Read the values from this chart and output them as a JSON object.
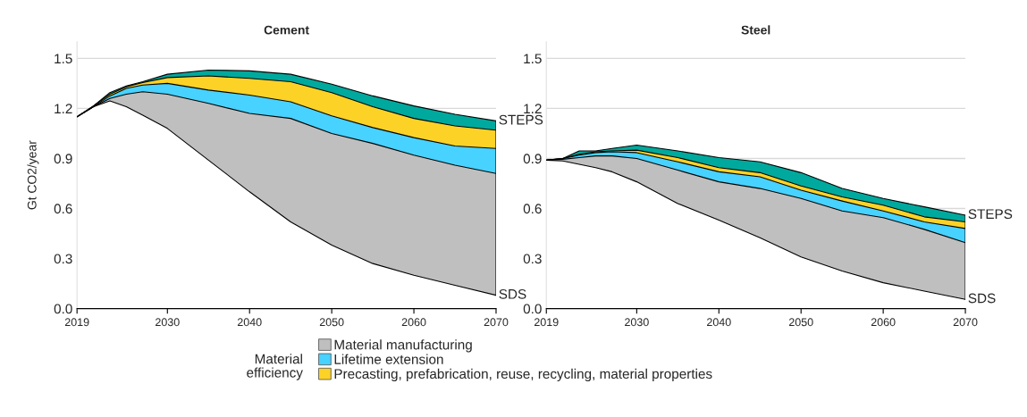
{
  "chart_data": [
    {
      "type": "area",
      "title": "Cement",
      "ylabel": "Gt CO2/year",
      "stacked": true,
      "legend": "bottom",
      "legend_title": "Material efficiency",
      "grid": "y",
      "x": [
        2019,
        2021,
        2023,
        2025,
        2027,
        2030,
        2035,
        2040,
        2045,
        2050,
        2055,
        2060,
        2065,
        2070
      ],
      "xlim": [
        2019,
        2070
      ],
      "xticks": [
        2019,
        2030,
        2040,
        2050,
        2060,
        2070
      ],
      "ylim": [
        0,
        1.6
      ],
      "yticks": [
        {
          "value": 0,
          "label": "0.0"
        },
        0.3,
        0.6,
        0.9,
        1.2,
        1.5
      ],
      "series": [
        {
          "color": "#ffffff",
          "values": [
            1.15,
            1.21,
            1.245,
            1.21,
            1.16,
            1.08,
            0.89,
            0.7,
            0.52,
            0.38,
            0.27,
            0.2,
            0.14,
            0.08
          ]
        },
        {
          "name": "Material manufacturing",
          "color": "#bfbfbf",
          "values": [
            0,
            0,
            0.015,
            0.075,
            0.14,
            0.205,
            0.34,
            0.47,
            0.62,
            0.67,
            0.72,
            0.72,
            0.72,
            0.73
          ]
        },
        {
          "name": "Lifetime extension",
          "color": "#48d2ff",
          "values": [
            0,
            0,
            0.015,
            0.035,
            0.04,
            0.065,
            0.08,
            0.11,
            0.1,
            0.105,
            0.095,
            0.105,
            0.115,
            0.15
          ]
        },
        {
          "name": "Precasting, prefabrication, reuse, recycling, material properties",
          "color": "#fdd226",
          "values": [
            0,
            0.005,
            0.01,
            0.01,
            0.015,
            0.035,
            0.085,
            0.1,
            0.12,
            0.14,
            0.125,
            0.115,
            0.12,
            0.11
          ]
        },
        {
          "color": "#00a99d",
          "values": [
            0,
            0,
            0.01,
            0.005,
            0.005,
            0.02,
            0.035,
            0.045,
            0.045,
            0.05,
            0.065,
            0.075,
            0.07,
            0.055
          ]
        }
      ],
      "annotations": [
        "STEPS",
        "SDS"
      ]
    },
    {
      "type": "area",
      "title": "Steel",
      "stacked": true,
      "grid": "y",
      "x": [
        2019,
        2021,
        2023,
        2025,
        2027,
        2030,
        2035,
        2040,
        2045,
        2050,
        2055,
        2060,
        2065,
        2070
      ],
      "xlim": [
        2019,
        2070
      ],
      "xticks": [
        2019,
        2030,
        2040,
        2050,
        2060,
        2070
      ],
      "ylim": [
        0,
        1.6
      ],
      "yticks": [
        {
          "value": 0,
          "label": "0.0"
        },
        0.3,
        0.6,
        0.9,
        1.2,
        1.5
      ],
      "series": [
        {
          "color": "#ffffff",
          "values": [
            0.89,
            0.885,
            0.865,
            0.845,
            0.82,
            0.76,
            0.63,
            0.53,
            0.425,
            0.31,
            0.225,
            0.155,
            0.105,
            0.055
          ]
        },
        {
          "color": "#bfbfbf",
          "values": [
            0,
            0.01,
            0.04,
            0.07,
            0.095,
            0.14,
            0.2,
            0.23,
            0.295,
            0.35,
            0.36,
            0.39,
            0.37,
            0.34
          ]
        },
        {
          "color": "#48d2ff",
          "values": [
            0,
            0.005,
            0.015,
            0.02,
            0.025,
            0.035,
            0.05,
            0.06,
            0.07,
            0.05,
            0.06,
            0.04,
            0.045,
            0.085
          ]
        },
        {
          "color": "#fdd226",
          "values": [
            0,
            0,
            0.005,
            0.005,
            0.005,
            0.015,
            0.025,
            0.025,
            0.025,
            0.025,
            0.025,
            0.035,
            0.03,
            0.04
          ]
        },
        {
          "color": "#00a99d",
          "values": [
            0,
            0,
            0.02,
            0.005,
            0.015,
            0.03,
            0.04,
            0.06,
            0.065,
            0.08,
            0.05,
            0.04,
            0.06,
            0.04
          ]
        }
      ],
      "annotations": [
        "STEPS",
        "SDS"
      ]
    }
  ]
}
